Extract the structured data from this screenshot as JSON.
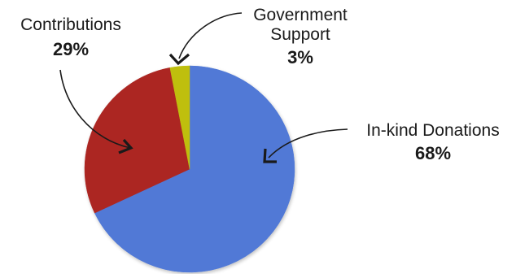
{
  "chart_data": {
    "type": "pie",
    "title": "",
    "slices": [
      {
        "name": "In-kind Donations",
        "value": 68,
        "value_label": "68%",
        "color": "#5179d6"
      },
      {
        "name": "Contributions",
        "value": 29,
        "value_label": "29%",
        "color": "#ac2723"
      },
      {
        "name": "Government Support",
        "value": 3,
        "value_label": "3%",
        "color": "#bfbf10"
      }
    ],
    "legend": "none",
    "annotations": "callout labels with curved arrows"
  },
  "labels": {
    "inkind_name": "In-kind Donations",
    "inkind_pct": "68%",
    "contrib_name": "Contributions",
    "contrib_pct": "29%",
    "gov_name_line1": "Government",
    "gov_name_line2": "Support",
    "gov_pct": "3%"
  }
}
